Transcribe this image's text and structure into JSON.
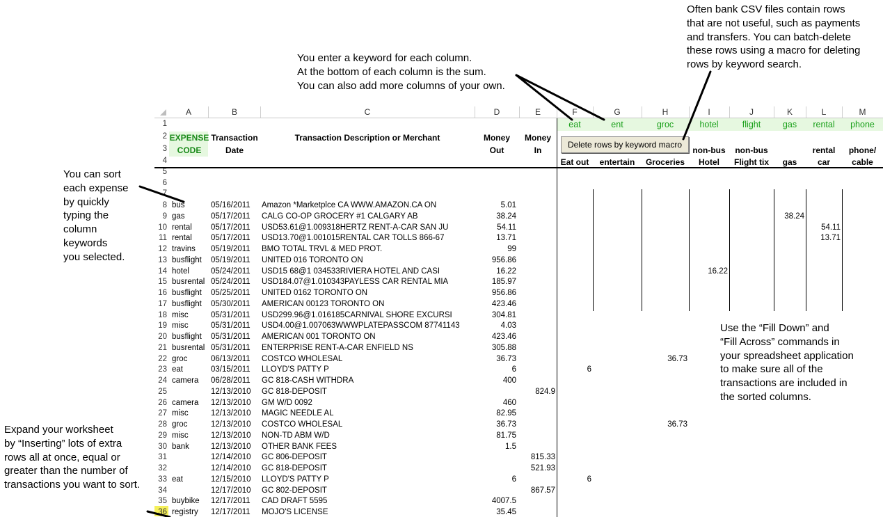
{
  "notes": {
    "top_center": [
      "You enter a keyword for each column.",
      "At the bottom of each column is the sum.",
      "You can also add more columns of your own."
    ],
    "top_right": [
      "Often bank CSV files contain rows",
      "that are not useful, such as payments",
      "and transfers.  You can batch-delete",
      "these rows using a macro for deleting",
      "rows by keyword search."
    ],
    "left_sort": [
      "You can sort",
      "each expense",
      "by quickly",
      "typing the",
      "column",
      "keywords",
      "you selected."
    ],
    "left_expand": [
      "Expand your worksheet",
      "by “Inserting” lots of extra",
      "rows all at once, equal or",
      "greater than the number of",
      "transactions you want to sort."
    ],
    "right_fill": [
      "Use the “Fill Down” and",
      "“Fill Across” commands in",
      "your spreadsheet application",
      "to make sure all of the",
      "transactions are included in",
      "the sorted columns."
    ]
  },
  "columns": [
    "A",
    "B",
    "C",
    "D",
    "E",
    "F",
    "G",
    "H",
    "I",
    "J",
    "K",
    "L",
    "M"
  ],
  "keywords": [
    "eat",
    "ent",
    "groc",
    "hotel",
    "flight",
    "gas",
    "rental",
    "phone"
  ],
  "macro_button": "Delete rows by keyword macro",
  "headers": {
    "expense_1": "EXPENSE",
    "expense_2": "CODE",
    "date_1": "Transaction",
    "date_2": "Date",
    "desc": "Transaction Description or Merchant",
    "out_1": "Money",
    "out_2": "Out",
    "in_1": "Money",
    "in_2": "In",
    "cat_top": [
      "",
      "",
      "",
      "non-bus",
      "non-bus",
      "",
      "rental",
      "phone/"
    ],
    "cat_bottom": [
      "Eat out",
      "entertain",
      "Groceries",
      "Hotel",
      "Flight tix",
      "gas",
      "car",
      "cable"
    ]
  },
  "row_numbers": [
    "1",
    "2",
    "3",
    "4",
    "5",
    "6",
    "7"
  ],
  "rows": [
    {
      "n": "8",
      "code": "bus",
      "date": "05/16/2011",
      "desc": "Amazon *Marketplce CA  WWW.AMAZON.CA ON",
      "out": "5.01",
      "in": "",
      "f": "",
      "h": "",
      "i": "",
      "k": "",
      "l": ""
    },
    {
      "n": "9",
      "code": "gas",
      "date": "05/17/2011",
      "desc": "CALG CO-OP GROCERY #1  CALGARY       AB",
      "out": "38.24",
      "in": "",
      "f": "",
      "h": "",
      "i": "",
      "k": "38.24",
      "l": ""
    },
    {
      "n": "10",
      "code": "rental",
      "date": "05/17/2011",
      "desc": "USD53.61@1.009318HERTZ RENT-A-CAR SAN JU",
      "out": "54.11",
      "in": "",
      "f": "",
      "h": "",
      "i": "",
      "k": "",
      "l": "54.11"
    },
    {
      "n": "11",
      "code": "rental",
      "date": "05/17/2011",
      "desc": "USD13.70@1.001015RENTAL CAR TOLLS 866-67",
      "out": "13.71",
      "in": "",
      "f": "",
      "h": "",
      "i": "",
      "k": "",
      "l": "13.71"
    },
    {
      "n": "12",
      "code": "travins",
      "date": "05/19/2011",
      "desc": "BMO TOTAL TRVL & MED PROT.",
      "out": "99",
      "in": "",
      "f": "",
      "h": "",
      "i": "",
      "k": "",
      "l": ""
    },
    {
      "n": "13",
      "code": "busflight",
      "date": "05/19/2011",
      "desc": "UNITED   016 TORONTO       ON",
      "out": "956.86",
      "in": "",
      "f": "",
      "h": "",
      "i": "",
      "k": "",
      "l": ""
    },
    {
      "n": "14",
      "code": "hotel",
      "date": "05/24/2011",
      "desc": "USD15 68@1 034533RIVIERA HOTEL AND CASI",
      "out": "16.22",
      "in": "",
      "f": "",
      "h": "",
      "i": "16.22",
      "k": "",
      "l": ""
    },
    {
      "n": "15",
      "code": "busrental",
      "date": "05/24/2011",
      "desc": "USD184.07@1.010343PAYLESS CAR RENTAL MIA",
      "out": "185.97",
      "in": "",
      "f": "",
      "h": "",
      "i": "",
      "k": "",
      "l": ""
    },
    {
      "n": "16",
      "code": "busflight",
      "date": "05/25/2011",
      "desc": "UNITED   0162 TORONTO       ON",
      "out": "956.86",
      "in": "",
      "f": "",
      "h": "",
      "i": "",
      "k": "",
      "l": ""
    },
    {
      "n": "17",
      "code": "busflight",
      "date": "05/30/2011",
      "desc": "AMERICAN 00123 TORONTO       ON",
      "out": "423.46",
      "in": "",
      "f": "",
      "h": "",
      "i": "",
      "k": "",
      "l": ""
    },
    {
      "n": "18",
      "code": "misc",
      "date": "05/31/2011",
      "desc": "USD299.96@1.016185CARNIVAL SHORE EXCURSI",
      "out": "304.81",
      "in": "",
      "f": "",
      "h": "",
      "i": "",
      "k": "",
      "l": ""
    },
    {
      "n": "19",
      "code": "misc",
      "date": "05/31/2011",
      "desc": "USD4.00@1.007063WWWPLATEPASSCOM 87741143",
      "out": "4.03",
      "in": "",
      "f": "",
      "h": "",
      "i": "",
      "k": "",
      "l": ""
    },
    {
      "n": "20",
      "code": "busflight",
      "date": "05/31/2011",
      "desc": "AMERICAN 001 TORONTO       ON",
      "out": "423.46",
      "in": "",
      "f": "",
      "h": "",
      "i": "",
      "k": "",
      "l": ""
    },
    {
      "n": "21",
      "code": "busrental",
      "date": "05/31/2011",
      "desc": "ENTERPRISE RENT-A-CAR  ENFIELD       NS",
      "out": "305.88",
      "in": "",
      "f": "",
      "h": "",
      "i": "",
      "k": "",
      "l": ""
    },
    {
      "n": "22",
      "code": "groc",
      "date": "06/13/2011",
      "desc": "COSTCO WHOLESAL",
      "out": "36.73",
      "in": "",
      "f": "",
      "h": "36.73",
      "i": "",
      "k": "",
      "l": ""
    },
    {
      "n": "23",
      "code": "eat",
      "date": "03/15/2011",
      "desc": "LLOYD'S PATTY P",
      "out": "6",
      "in": "",
      "f": "6",
      "h": "",
      "i": "",
      "k": "",
      "l": ""
    },
    {
      "n": "24",
      "code": "camera",
      "date": "06/28/2011",
      "desc": "GC 818-CASH WITHDRA",
      "out": "400",
      "in": "",
      "f": "",
      "h": "",
      "i": "",
      "k": "",
      "l": ""
    },
    {
      "n": "25",
      "code": "",
      "date": "12/13/2010",
      "desc": "GC 818-DEPOSIT",
      "out": "",
      "in": "824.9",
      "f": "",
      "h": "",
      "i": "",
      "k": "",
      "l": ""
    },
    {
      "n": "26",
      "code": "camera",
      "date": "12/13/2010",
      "desc": "GM W/D       0092",
      "out": "460",
      "in": "",
      "f": "",
      "h": "",
      "i": "",
      "k": "",
      "l": ""
    },
    {
      "n": "27",
      "code": "misc",
      "date": "12/13/2010",
      "desc": "MAGIC NEEDLE AL",
      "out": "82.95",
      "in": "",
      "f": "",
      "h": "",
      "i": "",
      "k": "",
      "l": ""
    },
    {
      "n": "28",
      "code": "groc",
      "date": "12/13/2010",
      "desc": "COSTCO WHOLESAL",
      "out": "36.73",
      "in": "",
      "f": "",
      "h": "36.73",
      "i": "",
      "k": "",
      "l": ""
    },
    {
      "n": "29",
      "code": "misc",
      "date": "12/13/2010",
      "desc": "NON-TD ABM W/D",
      "out": "81.75",
      "in": "",
      "f": "",
      "h": "",
      "i": "",
      "k": "",
      "l": ""
    },
    {
      "n": "30",
      "code": "bank",
      "date": "12/13/2010",
      "desc": "OTHER BANK FEES",
      "out": "1.5",
      "in": "",
      "f": "",
      "h": "",
      "i": "",
      "k": "",
      "l": ""
    },
    {
      "n": "31",
      "code": "",
      "date": "12/14/2010",
      "desc": "GC 806-DEPOSIT",
      "out": "",
      "in": "815.33",
      "f": "",
      "h": "",
      "i": "",
      "k": "",
      "l": ""
    },
    {
      "n": "32",
      "code": "",
      "date": "12/14/2010",
      "desc": "GC 818-DEPOSIT",
      "out": "",
      "in": "521.93",
      "f": "",
      "h": "",
      "i": "",
      "k": "",
      "l": ""
    },
    {
      "n": "33",
      "code": "eat",
      "date": "12/15/2010",
      "desc": "LLOYD'S PATTY P",
      "out": "6",
      "in": "",
      "f": "6",
      "h": "",
      "i": "",
      "k": "",
      "l": ""
    },
    {
      "n": "34",
      "code": "",
      "date": "12/17/2010",
      "desc": "GC 802-DEPOSIT",
      "out": "",
      "in": "867.57",
      "f": "",
      "h": "",
      "i": "",
      "k": "",
      "l": ""
    },
    {
      "n": "35",
      "code": "buybike",
      "date": "12/17/2011",
      "desc": "CAD DRAFT 5595",
      "out": "4007.5",
      "in": "",
      "f": "",
      "h": "",
      "i": "",
      "k": "",
      "l": ""
    },
    {
      "n": "36",
      "code": "registry",
      "date": "12/17/2011",
      "desc": "MOJO'S LICENSE",
      "out": "35.45",
      "in": "",
      "f": "",
      "h": "",
      "i": "",
      "k": "",
      "l": ""
    }
  ]
}
